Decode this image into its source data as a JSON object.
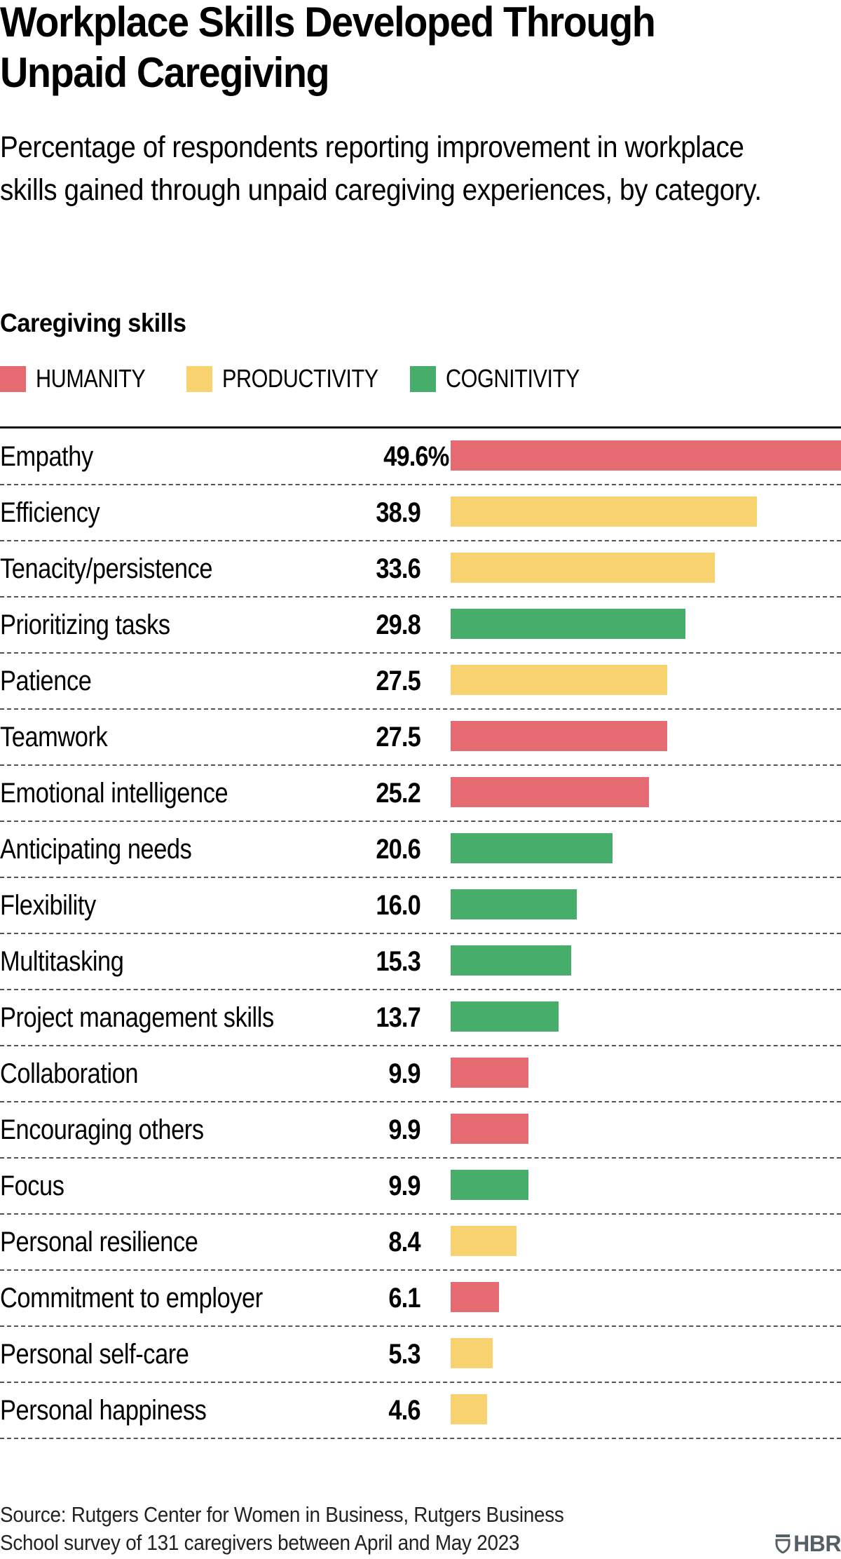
{
  "header": {
    "title_line1": "Workplace Skills Developed Through",
    "title_line2": "Unpaid Caregiving",
    "subtitle": "Percentage of respondents reporting improvement in workplace skills gained through unpaid caregiving experiences, by category."
  },
  "section_title": "Caregiving skills",
  "legend": [
    {
      "label": "HUMANITY",
      "color": "#e66a72"
    },
    {
      "label": "PRODUCTIVITY",
      "color": "#f8d26e"
    },
    {
      "label": "COGNITIVITY",
      "color": "#46ad6a"
    }
  ],
  "footer": {
    "source_line1": "Source: Rutgers Center for Women in Business, Rutgers Business",
    "source_line2": "School survey of 131 caregivers between April and May 2023",
    "logo": "HBR",
    "logo_icon": "shield-icon"
  },
  "chart_data": {
    "type": "bar",
    "orientation": "horizontal",
    "title": "Workplace Skills Developed Through Unpaid Caregiving",
    "subtitle": "Percentage of respondents reporting improvement in workplace skills gained through unpaid caregiving experiences, by category.",
    "xlabel": "",
    "ylabel": "Caregiving skills",
    "unit": "%",
    "xlim": [
      0,
      49.6
    ],
    "grid": false,
    "legend_position": "top-left",
    "legend": [
      "HUMANITY",
      "PRODUCTIVITY",
      "COGNITIVITY"
    ],
    "colors": {
      "HUMANITY": "#e66a72",
      "PRODUCTIVITY": "#f8d26e",
      "COGNITIVITY": "#46ad6a"
    },
    "categories": [
      "Empathy",
      "Efficiency",
      "Tenacity/persistence",
      "Prioritizing tasks",
      "Patience",
      "Teamwork",
      "Emotional intelligence",
      "Anticipating needs",
      "Flexibility",
      "Multitasking",
      "Project management skills",
      "Collaboration",
      "Encouraging others",
      "Focus",
      "Personal resilience",
      "Commitment to employer",
      "Personal self-care",
      "Personal happiness"
    ],
    "values": [
      49.6,
      38.9,
      33.6,
      29.8,
      27.5,
      27.5,
      25.2,
      20.6,
      16.0,
      15.3,
      13.7,
      9.9,
      9.9,
      9.9,
      8.4,
      6.1,
      5.3,
      4.6
    ],
    "value_labels": [
      "49.6%",
      "38.9",
      "33.6",
      "29.8",
      "27.5",
      "27.5",
      "25.2",
      "20.6",
      "16.0",
      "15.3",
      "13.7",
      "9.9",
      "9.9",
      "9.9",
      "8.4",
      "6.1",
      "5.3",
      "4.6"
    ],
    "groups": [
      "HUMANITY",
      "PRODUCTIVITY",
      "PRODUCTIVITY",
      "COGNITIVITY",
      "PRODUCTIVITY",
      "HUMANITY",
      "HUMANITY",
      "COGNITIVITY",
      "COGNITIVITY",
      "COGNITIVITY",
      "COGNITIVITY",
      "HUMANITY",
      "HUMANITY",
      "COGNITIVITY",
      "PRODUCTIVITY",
      "HUMANITY",
      "PRODUCTIVITY",
      "PRODUCTIVITY"
    ]
  }
}
